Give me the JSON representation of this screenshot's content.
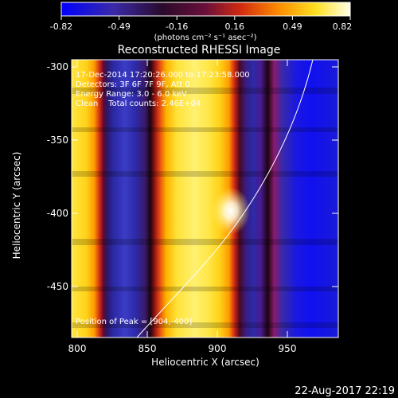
{
  "colorbar": {
    "ticks": [
      "-0.82",
      "-0.49",
      "-0.16",
      "0.16",
      "0.49",
      "0.82"
    ],
    "unit_label": "(photons cm⁻² s⁻¹ asec⁻²)",
    "range": [
      -0.82,
      0.82
    ]
  },
  "image": {
    "title": "Reconstructed RHESSI Image",
    "xlabel": "Heliocentric X (arcsec)",
    "ylabel": "Heliocentric Y (arcsec)",
    "x_ticks": [
      "800",
      "850",
      "900",
      "950"
    ],
    "y_ticks": [
      "-300",
      "-350",
      "-400",
      "-450"
    ],
    "x_range": [
      790,
      980
    ],
    "y_range": [
      -485,
      -295
    ]
  },
  "annotations": {
    "time": "17-Dec-2014 17:20:26.000 to 17:23:58.000",
    "detectors": "Detectors: 3F 6F 7F 9F, Att 0",
    "energy": "Energy Range: 3.0 - 6.0 keV",
    "clean": "Clean    Total counts: 2.46E+04",
    "peak": "Position of Peak = [904,-400]"
  },
  "footer": {
    "timestamp": "22-Aug-2017 22:19"
  }
}
